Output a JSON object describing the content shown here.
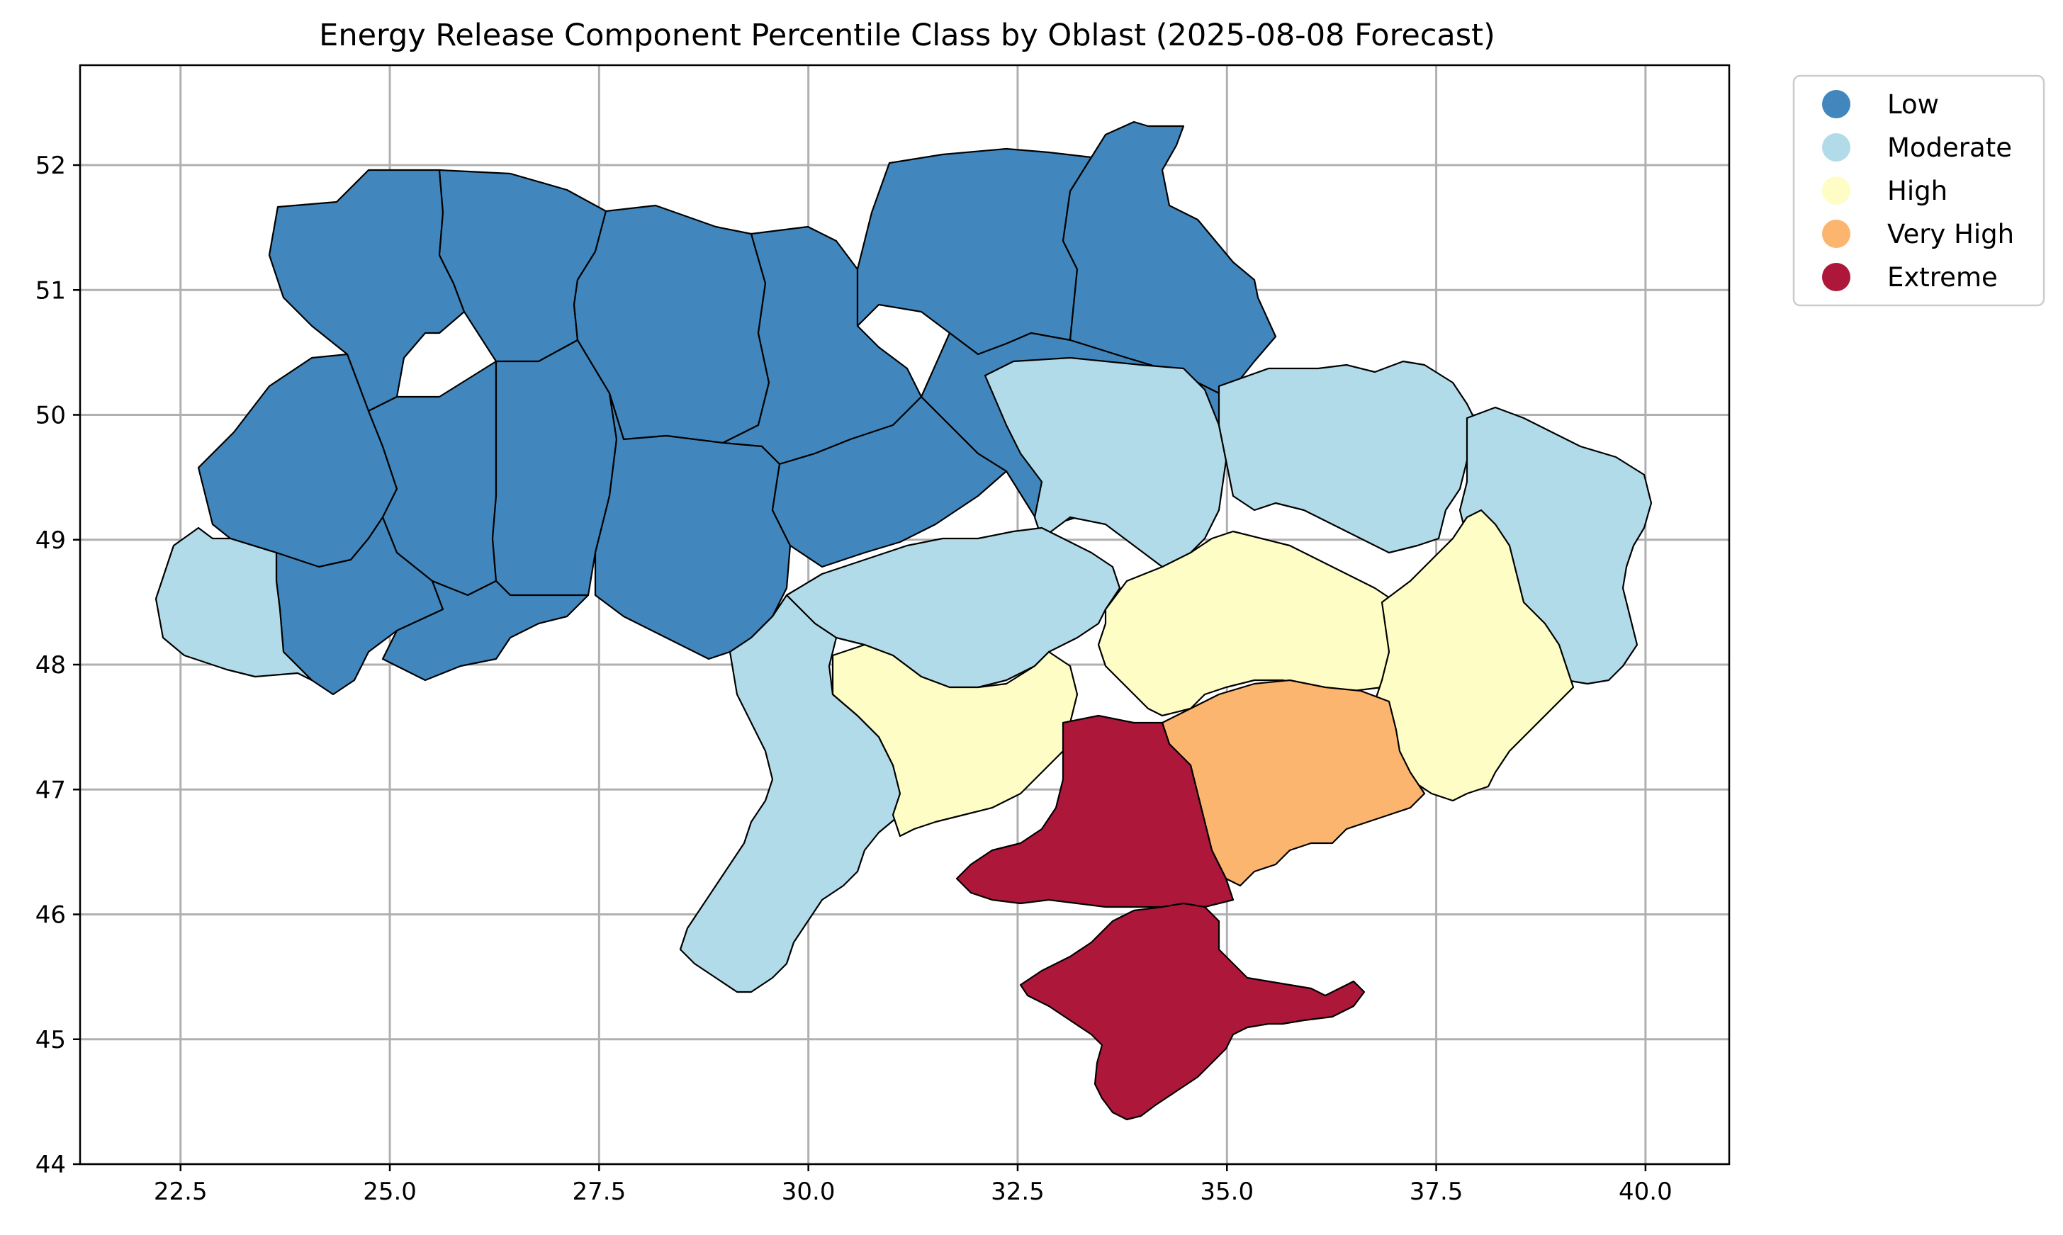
{
  "chart_data": {
    "type": "choropleth",
    "title": "Energy Release Component Percentile Class by Oblast (2025-08-08 Forecast)",
    "x_ticks": [
      "22.5",
      "25.0",
      "27.5",
      "30.0",
      "32.5",
      "35.0",
      "37.5",
      "40.0"
    ],
    "y_ticks": [
      "44",
      "45",
      "46",
      "47",
      "48",
      "49",
      "50",
      "51",
      "52"
    ],
    "xlim": [
      21.3,
      41.0
    ],
    "ylim": [
      44.0,
      52.8
    ],
    "grid": true,
    "legend_position": "outside-top-right",
    "classes": [
      {
        "label": "Low",
        "color": "#4187bd"
      },
      {
        "label": "Moderate",
        "color": "#b2dbe9"
      },
      {
        "label": "High",
        "color": "#fefdc5"
      },
      {
        "label": "Very High",
        "color": "#fbb56f"
      },
      {
        "label": "Extreme",
        "color": "#ad173a"
      }
    ],
    "regions": [
      {
        "class": "Low"
      },
      {
        "class": "Low"
      },
      {
        "class": "Low"
      },
      {
        "class": "Low"
      },
      {
        "class": "Low"
      },
      {
        "class": "Low"
      },
      {
        "class": "Low"
      },
      {
        "class": "Low"
      },
      {
        "class": "Low"
      },
      {
        "class": "Low"
      },
      {
        "class": "Low"
      },
      {
        "class": "Low"
      },
      {
        "class": "Low"
      },
      {
        "class": "Low"
      },
      {
        "class": "Moderate"
      },
      {
        "class": "Moderate"
      },
      {
        "class": "Moderate"
      },
      {
        "class": "Moderate"
      },
      {
        "class": "Moderate"
      },
      {
        "class": "Moderate"
      },
      {
        "class": "High"
      },
      {
        "class": "High"
      },
      {
        "class": "High"
      },
      {
        "class": "Very High"
      },
      {
        "class": "Extreme"
      },
      {
        "class": "Extreme"
      }
    ]
  }
}
